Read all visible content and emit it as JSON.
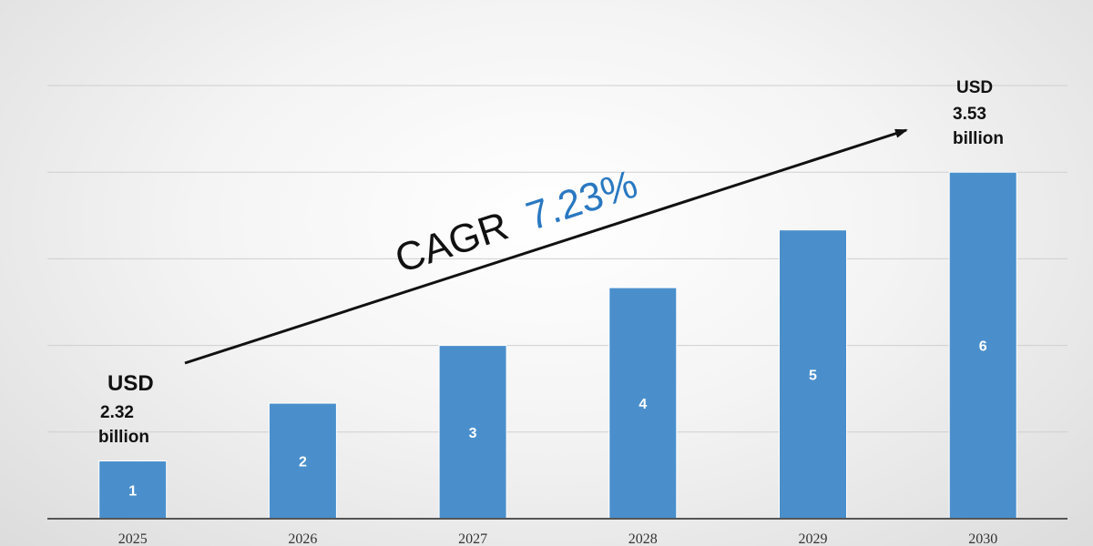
{
  "chart_data": {
    "type": "bar",
    "categories": [
      "2025",
      "2026",
      "2027",
      "2028",
      "2029",
      "2030"
    ],
    "values": [
      1,
      2,
      3,
      4,
      5,
      6
    ],
    "data_labels": [
      "1",
      "2",
      "3",
      "4",
      "5",
      "6"
    ],
    "ylim": [
      0,
      7.5
    ],
    "grid": true,
    "bar_color": "#4a8fcc",
    "title": "",
    "xlabel": "",
    "ylabel": ""
  },
  "annotations": {
    "start": {
      "usd": "USD",
      "value": "2.32",
      "unit": "billion"
    },
    "end": {
      "usd": "USD",
      "value": "3.53",
      "unit": "billion"
    },
    "cagr": {
      "label": "CAGR",
      "value": "7.23%",
      "label_color": "#111111",
      "value_color": "#2a78c2"
    }
  }
}
